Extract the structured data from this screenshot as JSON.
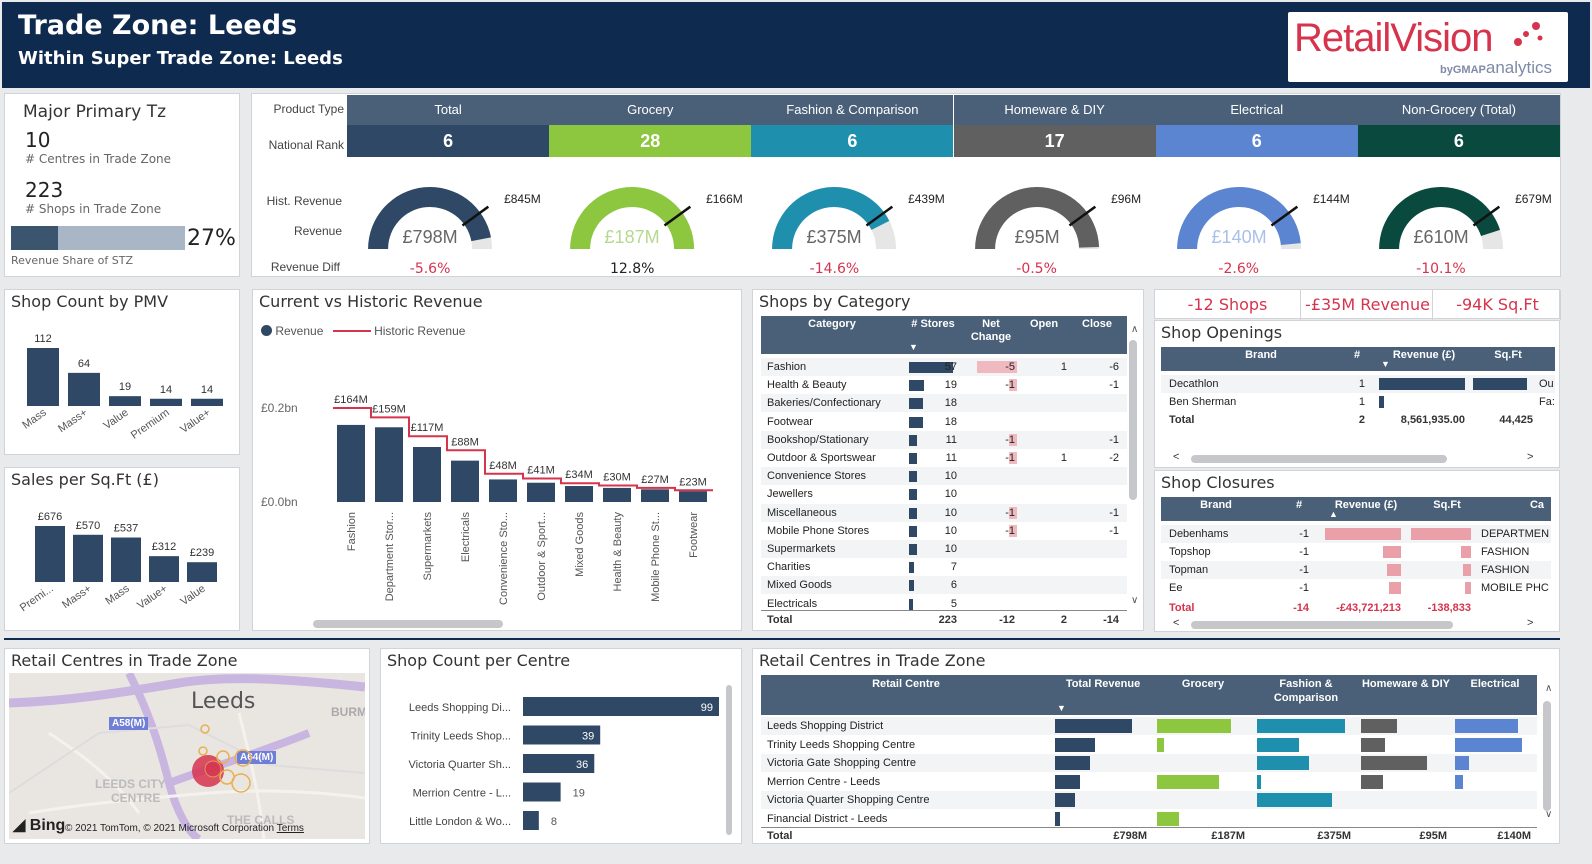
{
  "header": {
    "title": "Trade Zone: Leeds",
    "subtitle": "Within Super Trade Zone: Leeds"
  },
  "logo": {
    "main": "RetailVision",
    "by": "by",
    "brand": "GMAP",
    "sub": "analytics"
  },
  "tz": {
    "title": "Major Primary Tz",
    "centres_value": "10",
    "centres_label": "# Centres in Trade Zone",
    "shops_value": "223",
    "shops_label": "# Shops in Trade Zone",
    "share_pct": "27%",
    "share_fraction": 0.27,
    "share_label": "Revenue Share of STZ"
  },
  "categories": {
    "row_product_type": "Product Type",
    "row_rank": "National Rank",
    "row_hist": "Hist. Revenue",
    "row_revenue": "Revenue",
    "row_diff": "Revenue Diff",
    "items": [
      {
        "name": "Total",
        "rank": "6",
        "revenue": "£798M",
        "hist": "£845M",
        "diff": "-5.6%",
        "color": "#2f4865",
        "fill": 0.94,
        "diff_color": "#d6334d"
      },
      {
        "name": "Grocery",
        "rank": "28",
        "revenue": "£187M",
        "hist": "£166M",
        "diff": "12.8%",
        "color": "#8dc63f",
        "fill": 1.0,
        "diff_color": "#222"
      },
      {
        "name": "Fashion & Comparison",
        "rank": "6",
        "revenue": "£375M",
        "hist": "£439M",
        "diff": "-14.6%",
        "color": "#1f8fae",
        "fill": 0.85,
        "diff_color": "#d6334d"
      },
      {
        "name": "Homeware & DIY",
        "rank": "17",
        "revenue": "£95M",
        "hist": "£96M",
        "diff": "-0.5%",
        "color": "#606060",
        "fill": 0.99,
        "diff_color": "#d6334d"
      },
      {
        "name": "Electrical",
        "rank": "6",
        "revenue": "£140M",
        "hist": "£144M",
        "diff": "-2.6%",
        "color": "#5b84d1",
        "fill": 0.97,
        "diff_color": "#d6334d"
      },
      {
        "name": "Non-Grocery (Total)",
        "rank": "6",
        "revenue": "£610M",
        "hist": "£679M",
        "diff": "-10.1%",
        "color": "#0a4a3e",
        "fill": 0.9,
        "diff_color": "#d6334d"
      }
    ]
  },
  "shop_count_pmv": {
    "title": "Shop Count by PMV",
    "chart_data": {
      "type": "bar",
      "categories": [
        "Mass",
        "Mass+",
        "Value",
        "Premium",
        "Value+"
      ],
      "values": [
        112,
        64,
        19,
        14,
        14
      ]
    }
  },
  "sales_sqft": {
    "title": "Sales per Sq.Ft (£)",
    "chart_data": {
      "type": "bar",
      "categories": [
        "Premi...",
        "Mass+",
        "Mass",
        "Value+",
        "Value"
      ],
      "values": [
        676,
        570,
        537,
        312,
        239
      ],
      "labels": [
        "£676",
        "£570",
        "£537",
        "£312",
        "£239"
      ]
    }
  },
  "cvh": {
    "title": "Current vs Historic Revenue",
    "legend_revenue": "Revenue",
    "legend_hist": "Historic Revenue",
    "y_ticks": [
      "£0.2bn",
      "£0.0bn"
    ],
    "chart_data": {
      "type": "bar",
      "categories": [
        "Fashion",
        "Department Stor...",
        "Supermarkets",
        "Electricals",
        "Convenience Sto...",
        "Outdoor & Sport...",
        "Mixed Goods",
        "Health & Beauty",
        "Mobile Phone St...",
        "Footwear"
      ],
      "values": [
        164,
        159,
        117,
        88,
        48,
        41,
        34,
        30,
        27,
        23
      ],
      "labels": [
        "£164M",
        "£159M",
        "£117M",
        "£88M",
        "£48M",
        "£41M",
        "£34M",
        "£30M",
        "£27M",
        "£23M"
      ],
      "historic": [
        200,
        180,
        140,
        110,
        60,
        50,
        40,
        35,
        30,
        25
      ]
    }
  },
  "shops_by_cat": {
    "title": "Shops by Category",
    "headers": [
      "Category",
      "# Stores",
      "Net Change",
      "Open",
      "Close"
    ],
    "rows": [
      {
        "cat": "Fashion",
        "stores": "57",
        "net": "-5",
        "open": "1",
        "close": "-6"
      },
      {
        "cat": "Health & Beauty",
        "stores": "19",
        "net": "-1",
        "open": "",
        "close": "-1"
      },
      {
        "cat": "Bakeries/Confectionary",
        "stores": "18",
        "net": "",
        "open": "",
        "close": ""
      },
      {
        "cat": "Footwear",
        "stores": "18",
        "net": "",
        "open": "",
        "close": ""
      },
      {
        "cat": "Bookshop/Stationary",
        "stores": "11",
        "net": "-1",
        "open": "",
        "close": "-1"
      },
      {
        "cat": "Outdoor & Sportswear",
        "stores": "11",
        "net": "-1",
        "open": "1",
        "close": "-2"
      },
      {
        "cat": "Convenience Stores",
        "stores": "10",
        "net": "",
        "open": "",
        "close": ""
      },
      {
        "cat": "Jewellers",
        "stores": "10",
        "net": "",
        "open": "",
        "close": ""
      },
      {
        "cat": "Miscellaneous",
        "stores": "10",
        "net": "-1",
        "open": "",
        "close": "-1"
      },
      {
        "cat": "Mobile Phone Stores",
        "stores": "10",
        "net": "-1",
        "open": "",
        "close": "-1"
      },
      {
        "cat": "Supermarkets",
        "stores": "10",
        "net": "",
        "open": "",
        "close": ""
      },
      {
        "cat": "Charities",
        "stores": "7",
        "net": "",
        "open": "",
        "close": ""
      },
      {
        "cat": "Mixed Goods",
        "stores": "6",
        "net": "",
        "open": "",
        "close": ""
      },
      {
        "cat": "Electricals",
        "stores": "5",
        "net": "",
        "open": "",
        "close": ""
      }
    ],
    "total": {
      "label": "Total",
      "stores": "223",
      "net": "-12",
      "open": "2",
      "close": "-14"
    }
  },
  "kpis": [
    "-12 Shops",
    "-£35M Revenue",
    "-94K Sq.Ft"
  ],
  "openings": {
    "title": "Shop Openings",
    "headers": [
      "Brand",
      "#",
      "Revenue (£)",
      "Sq.Ft"
    ],
    "rows": [
      {
        "brand": "Decathlon",
        "n": "1",
        "cut": "Ou"
      },
      {
        "brand": "Ben Sherman",
        "n": "1",
        "cut": "Fa:"
      }
    ],
    "total": {
      "label": "Total",
      "n": "2",
      "rev": "8,561,935.00",
      "sqft": "44,425"
    }
  },
  "closures": {
    "title": "Shop Closures",
    "headers": [
      "Brand",
      "#",
      "Revenue (£)",
      "Sq.Ft",
      "Ca"
    ],
    "rows": [
      {
        "brand": "Debenhams",
        "n": "-1",
        "cat": "DEPARTMEN"
      },
      {
        "brand": "Topshop",
        "n": "-1",
        "cat": "FASHION"
      },
      {
        "brand": "Topman",
        "n": "-1",
        "cat": "FASHION"
      },
      {
        "brand": "Ee",
        "n": "-1",
        "cat": "MOBILE PHC"
      }
    ],
    "total": {
      "label": "Total",
      "n": "-14",
      "rev": "-£43,721,213",
      "sqft": "-138,833"
    }
  },
  "map": {
    "title": "Retail Centres in Trade Zone",
    "city": "Leeds",
    "road1": "A58(M)",
    "road2": "A64(M)",
    "area1": "LEEDS CITY",
    "area1b": "CENTRE",
    "area2": "THE CALLS",
    "area3": "BURM",
    "bing": "Bing",
    "credit": "© 2021 TomTom, © 2021 Microsoft Corporation",
    "terms": "Terms"
  },
  "shop_count_centre": {
    "title": "Shop Count per Centre",
    "chart_data": {
      "type": "bar",
      "categories": [
        "Leeds Shopping Di...",
        "Trinity Leeds Shop...",
        "Victoria Quarter Sh...",
        "Merrion Centre - L...",
        "Little London & Wo..."
      ],
      "values": [
        99,
        39,
        36,
        19,
        8
      ]
    }
  },
  "centres_table": {
    "title": "Retail Centres in Trade Zone",
    "headers": [
      "Retail Centre",
      "Total Revenue",
      "Grocery",
      "Fashion & Comparison",
      "Homeware & DIY",
      "Electrical"
    ],
    "rows": [
      {
        "name": "Leeds Shopping District",
        "v": [
          0.88,
          0.86,
          0.94,
          0.45,
          0.9
        ]
      },
      {
        "name": "Trinity Leeds Shopping Centre",
        "v": [
          0.45,
          0.08,
          0.45,
          0.3,
          0.95
        ]
      },
      {
        "name": "Victoria Gate Shopping Centre",
        "v": [
          0.4,
          0.0,
          0.55,
          0.82,
          0.2
        ]
      },
      {
        "name": "Merrion Centre - Leeds",
        "v": [
          0.28,
          0.72,
          0.04,
          0.27,
          0.12
        ]
      },
      {
        "name": "Victoria Quarter Shopping Centre",
        "v": [
          0.23,
          0.0,
          0.8,
          0.0,
          0.0
        ]
      },
      {
        "name": "Financial District - Leeds",
        "v": [
          0.06,
          0.26,
          0.0,
          0.0,
          0.0
        ]
      }
    ],
    "total": {
      "label": "Total",
      "v": [
        "£798M",
        "£187M",
        "£375M",
        "£95M",
        "£140M"
      ]
    }
  },
  "colors": {
    "navy": "#0e2b4f",
    "slate": "#2f4865",
    "red": "#d6334d",
    "pink": "#e9a0a8",
    "grocery": "#8dc63f",
    "fashion": "#1f8fae",
    "home": "#606060",
    "elec": "#5b84d1"
  }
}
